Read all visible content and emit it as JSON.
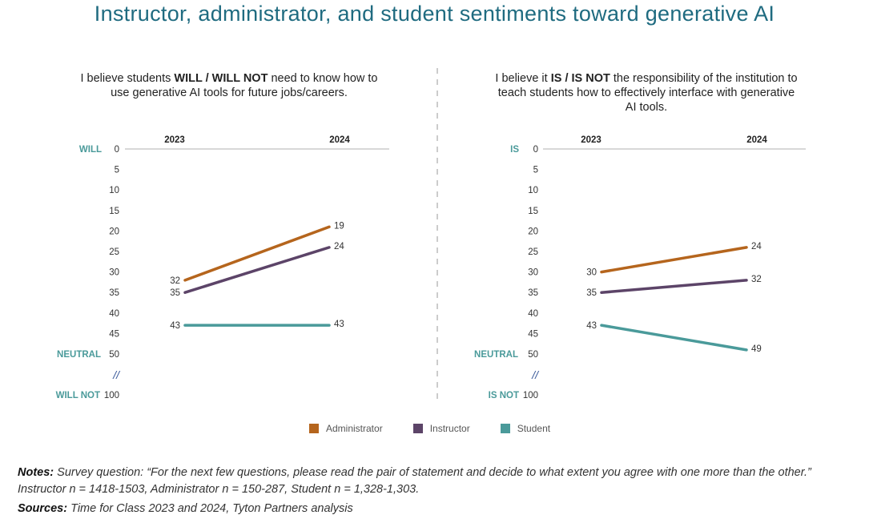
{
  "title": "Instructor, administrator, and student sentiments toward generative AI",
  "colors": {
    "title": "#1f6b80",
    "axis_label": "#4a9a9a",
    "Administrator": "#b5651d",
    "Instructor": "#5c4468",
    "Student": "#4a9a9a",
    "gridline": "#cccccc",
    "divider": "#bbbbbb",
    "break_mark": "#3a5a9a"
  },
  "legend": [
    {
      "name": "Administrator"
    },
    {
      "name": "Instructor"
    },
    {
      "name": "Student"
    }
  ],
  "notes": {
    "label": "Notes:",
    "text": " Survey question: “For the next few questions, please read the pair of statement and decide to what extent you agree with one more than the other.” Instructor n = 1418-1503, Administrator n = 150-287, Student n = 1,328-1,303."
  },
  "sources": {
    "label": "Sources:",
    "text": " Time for Class 2023 and 2024, Tyton Partners analysis"
  },
  "chart_data": [
    {
      "type": "line",
      "title_parts": [
        "I believe students ",
        "WILL / WILL NOT",
        " need to know how to use generative AI tools for future jobs/careers."
      ],
      "x": [
        "2023",
        "2024"
      ],
      "yticks": [
        0,
        5,
        10,
        15,
        20,
        25,
        30,
        35,
        40,
        45,
        50
      ],
      "ytick_labels": [
        "0",
        "5",
        "10",
        "15",
        "20",
        "25",
        "30",
        "35",
        "40",
        "45",
        "50"
      ],
      "y_break_label": "//",
      "y_end_tick": "100",
      "y_axis_annotations": {
        "top": "WILL",
        "middle": "NEUTRAL",
        "bottom": "WILL NOT"
      },
      "ylim": [
        0,
        100
      ],
      "y_inverted": true,
      "series": [
        {
          "name": "Administrator",
          "values": [
            32,
            19
          ]
        },
        {
          "name": "Instructor",
          "values": [
            35,
            24
          ]
        },
        {
          "name": "Student",
          "values": [
            43,
            43
          ]
        }
      ],
      "grid": false
    },
    {
      "type": "line",
      "title_parts": [
        "I believe it ",
        "IS / IS NOT",
        " the responsibility of the institution to teach students how to effectively interface with generative AI tools."
      ],
      "x": [
        "2023",
        "2024"
      ],
      "yticks": [
        0,
        5,
        10,
        15,
        20,
        25,
        30,
        35,
        40,
        45,
        50
      ],
      "ytick_labels": [
        "0",
        "5",
        "10",
        "15",
        "20",
        "25",
        "30",
        "35",
        "40",
        "45",
        "50"
      ],
      "y_break_label": "//",
      "y_end_tick": "100",
      "y_axis_annotations": {
        "top": "IS",
        "middle": "NEUTRAL",
        "bottom": "IS NOT"
      },
      "ylim": [
        0,
        100
      ],
      "y_inverted": true,
      "series": [
        {
          "name": "Administrator",
          "values": [
            30,
            24
          ]
        },
        {
          "name": "Instructor",
          "values": [
            35,
            32
          ]
        },
        {
          "name": "Student",
          "values": [
            43,
            49
          ]
        }
      ],
      "grid": false
    }
  ]
}
